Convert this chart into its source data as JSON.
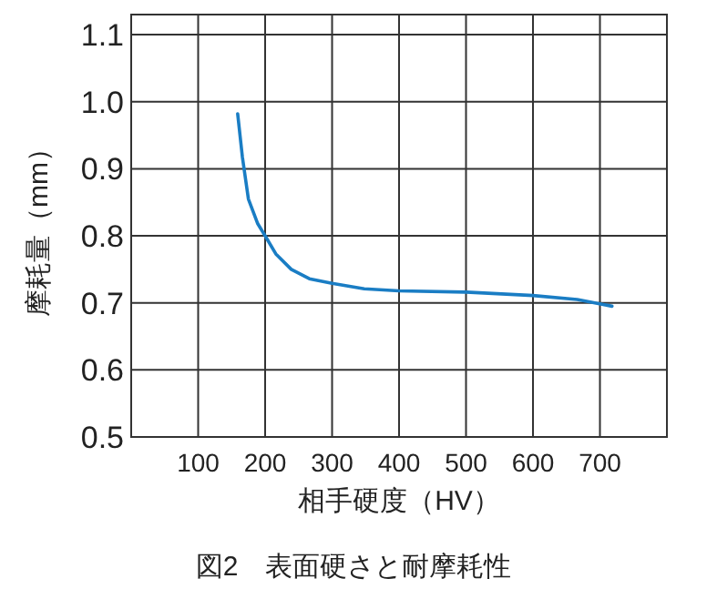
{
  "chart_data": {
    "type": "line",
    "title": "図2　表面硬さと耐摩耗性",
    "xlabel": "相手硬度（HV）",
    "ylabel": "摩耗量（mm）",
    "x": [
      159,
      166,
      175,
      189,
      200,
      216,
      239,
      266,
      300,
      348,
      400,
      500,
      600,
      666,
      703,
      718
    ],
    "series": [
      {
        "color": "#1a7dc4",
        "values": [
          0.982,
          0.918,
          0.855,
          0.818,
          0.8,
          0.773,
          0.75,
          0.736,
          0.729,
          0.721,
          0.718,
          0.716,
          0.711,
          0.705,
          0.698,
          0.695
        ]
      }
    ],
    "xlim": [
      0,
      800
    ],
    "xticks": [
      {
        "value": 0,
        "label": null
      },
      100,
      200,
      300,
      400,
      500,
      600,
      700,
      {
        "value": 800,
        "label": null
      }
    ],
    "ylim": [
      0.5,
      1.13
    ],
    "yticks": [
      0.5,
      0.6,
      0.7,
      0.8,
      0.9,
      {
        "value": 1,
        "label": "1.0"
      },
      1.1
    ],
    "grid": true,
    "marker": "none",
    "line_style": "solid"
  }
}
